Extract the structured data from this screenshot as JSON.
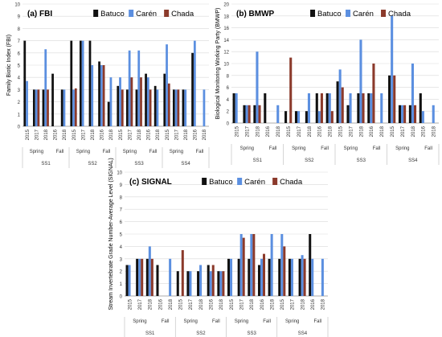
{
  "colors": {
    "Batuco": "#111111",
    "Carén": "#5b8fe0",
    "Chada": "#8b3a2b",
    "ChadaC": "#c0392b",
    "Green": "#3cb44b"
  },
  "chart_data": [
    {
      "type": "bar",
      "panel": "a",
      "title": "(a) FBI",
      "ylabel": "Family Biotic Index (FBI)",
      "ylim": [
        0,
        10
      ],
      "yticks": [
        0,
        1,
        2,
        3,
        4,
        5,
        6,
        7,
        8,
        9,
        10
      ],
      "legend": [
        "Batuco",
        "Carén",
        "Chada"
      ],
      "legend_position": "top",
      "sites": [
        "SS1",
        "SS2",
        "SS3",
        "SS4"
      ],
      "seasons": [
        "Spring",
        "Fall"
      ],
      "year_labels": [
        "2015",
        "2017",
        "2018",
        "2016",
        "2018"
      ],
      "series": [
        {
          "name": "Batuco",
          "values": [
            [
              7,
              3,
              3,
              4.3,
              3
            ],
            [
              7,
              7,
              7,
              5.3,
              2
            ],
            [
              3.3,
              3,
              3,
              4.3,
              3.3
            ],
            [
              4.3,
              3,
              3,
              6,
              0
            ]
          ]
        },
        {
          "name": "Carén",
          "values": [
            [
              3.7,
              3,
              6.3,
              0,
              3
            ],
            [
              3,
              7,
              5,
              5,
              4
            ],
            [
              4,
              6.2,
              6.2,
              4,
              3
            ],
            [
              6.7,
              3,
              3,
              7,
              3
            ]
          ]
        },
        {
          "name": "Chada",
          "values": [
            [
              0,
              3,
              3,
              0,
              0
            ],
            [
              3.1,
              0,
              0,
              5,
              0
            ],
            [
              3,
              4,
              4,
              3,
              0
            ],
            [
              3.5,
              3,
              0,
              0,
              0
            ]
          ]
        }
      ]
    },
    {
      "type": "bar",
      "panel": "b",
      "title": "(b) BMWP",
      "ylabel": "Biological Monitoring Working Party (BMWP)",
      "ylim": [
        0,
        20
      ],
      "yticks": [
        0,
        2,
        4,
        6,
        8,
        10,
        12,
        14,
        16,
        18,
        20
      ],
      "legend": [
        "Batuco",
        "Carén",
        "Chada"
      ],
      "legend_position": "top",
      "sites": [
        "SS1",
        "SS2",
        "SS3",
        "SS4"
      ],
      "seasons": [
        "Spring",
        "Fall"
      ],
      "year_labels": [
        "2015",
        "2017",
        "2018",
        "2016",
        "2018"
      ],
      "series": [
        {
          "name": "Batuco",
          "values": [
            [
              5,
              3,
              3,
              5,
              0
            ],
            [
              2,
              2,
              2,
              5,
              5
            ],
            [
              7,
              3,
              5,
              5,
              0
            ],
            [
              8,
              3,
              3,
              5,
              0
            ]
          ]
        },
        {
          "name": "Carén",
          "values": [
            [
              5,
              3,
              12,
              0,
              3
            ],
            [
              0,
              2,
              5,
              2,
              5
            ],
            [
              9,
              5,
              14,
              5,
              5
            ],
            [
              18,
              3,
              10,
              2,
              3
            ]
          ]
        },
        {
          "name": "Chada",
          "values": [
            [
              0,
              3,
              3,
              0,
              0
            ],
            [
              11,
              0,
              0,
              5,
              2
            ],
            [
              6,
              0,
              5,
              10,
              0
            ],
            [
              8,
              3,
              3,
              0,
              0
            ]
          ]
        }
      ]
    },
    {
      "type": "bar",
      "panel": "c",
      "title": "(c) SIGNAL",
      "ylabel": "Stream Invertebrate Grade Number-Average Level (SIGNAL)",
      "ylim": [
        0,
        10
      ],
      "yticks": [
        0,
        1,
        2,
        3,
        4,
        5,
        6,
        7,
        8,
        9,
        10
      ],
      "legend": [
        "Batuco",
        "Carén",
        "Chada"
      ],
      "legend_position": "top",
      "sites": [
        "SS1",
        "SS2",
        "SS3",
        "SS4"
      ],
      "seasons": [
        "Spring",
        "Fall"
      ],
      "year_labels": [
        "2015",
        "2017",
        "2018",
        "2016",
        "2018"
      ],
      "series": [
        {
          "name": "Batuco",
          "values": [
            [
              2.5,
              3,
              3,
              2.5,
              0
            ],
            [
              2,
              2,
              2,
              2.5,
              2
            ],
            [
              3,
              3,
              3,
              2.5,
              3
            ],
            [
              3,
              3,
              3,
              5,
              0
            ]
          ]
        },
        {
          "name": "Carén",
          "values": [
            [
              2.5,
              3,
              4,
              0,
              3
            ],
            [
              0,
              2,
              2.5,
              2,
              2
            ],
            [
              3,
              5,
              5,
              3,
              5
            ],
            [
              5,
              3,
              3.3,
              3,
              3
            ]
          ]
        },
        {
          "name": "Chada",
          "values": [
            [
              0,
              3,
              3,
              0,
              0
            ],
            [
              3.7,
              0,
              0,
              2.5,
              2
            ],
            [
              0,
              4.7,
              5,
              3.4,
              0
            ],
            [
              4,
              0,
              3,
              0,
              0
            ]
          ]
        }
      ]
    }
  ]
}
